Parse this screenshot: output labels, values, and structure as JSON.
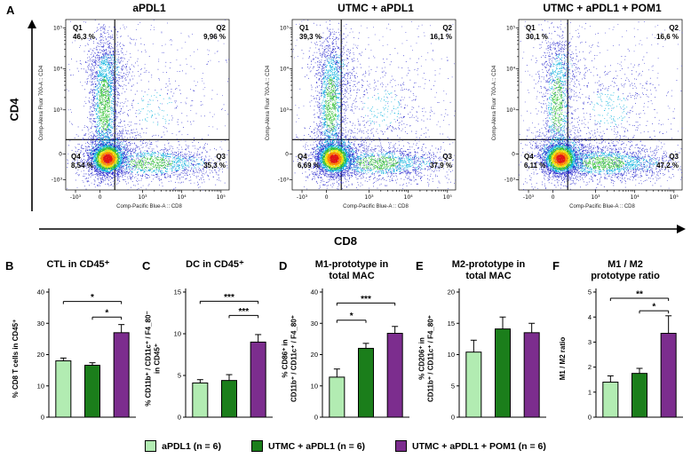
{
  "figure": {
    "panel_a_letter": "A",
    "cd4_big_label": "CD4",
    "cd8_big_label": "CD8"
  },
  "colors": {
    "bars": [
      "#b2ecb2",
      "#1b7e1b",
      "#7c2d8e"
    ],
    "density_scale": [
      "#2424cc",
      "#00b0dc",
      "#2fc12f",
      "#f2e40c",
      "#ff8400",
      "#e31414"
    ]
  },
  "legend": {
    "items": [
      {
        "label": "aPDL1 (n = 6)",
        "color": "#b2ecb2"
      },
      {
        "label": "UTMC + aPDL1 (n = 6)",
        "color": "#1b7e1b"
      },
      {
        "label": "UTMC + aPDL1 + POM1 (n = 6)",
        "color": "#7c2d8e"
      }
    ]
  },
  "chart_data": [
    {
      "type": "scatter",
      "subtype": "flow_cytometry_density",
      "panel": "A",
      "title": "aPDL1",
      "xlabel": "Comp-Pacific Blue-A :: CD8",
      "ylabel": "Comp-Alexa Fluor 700-A :: CD4",
      "xticks": [
        "-10³",
        "0",
        "10³",
        "10⁴",
        "10⁵"
      ],
      "yticks": [
        "-10³",
        "0",
        "10³",
        "10⁴",
        "10⁵"
      ],
      "quadrants": [
        {
          "label": "Q1",
          "pct": "46,3 %"
        },
        {
          "label": "Q2",
          "pct": "9,96 %"
        },
        {
          "label": "Q3",
          "pct": "35,3 %"
        },
        {
          "label": "Q4",
          "pct": "8,54 %"
        }
      ]
    },
    {
      "type": "scatter",
      "subtype": "flow_cytometry_density",
      "panel": "A",
      "title": "UTMC + aPDL1",
      "xlabel": "Comp-Pacific Blue-A :: CD8",
      "ylabel": "Comp-Alexa Fluor 700-A :: CD4",
      "xticks": [
        "-10³",
        "0",
        "10³",
        "10⁴",
        "10⁵"
      ],
      "yticks": [
        "-10³",
        "0",
        "10³",
        "10⁴",
        "10⁵"
      ],
      "quadrants": [
        {
          "label": "Q1",
          "pct": "39,3 %"
        },
        {
          "label": "Q2",
          "pct": "16,1 %"
        },
        {
          "label": "Q3",
          "pct": "37,9 %"
        },
        {
          "label": "Q4",
          "pct": "6,69 %"
        }
      ]
    },
    {
      "type": "scatter",
      "subtype": "flow_cytometry_density",
      "panel": "A",
      "title": "UTMC + aPDL1 + POM1",
      "xlabel": "Comp-Pacific Blue-A :: CD8",
      "ylabel": "Comp-Alexa Fluor 700-A :: CD4",
      "xticks": [
        "-10³",
        "0",
        "10³",
        "10⁴",
        "10⁵"
      ],
      "yticks": [
        "-10³",
        "0",
        "10³",
        "10⁴",
        "10⁵"
      ],
      "quadrants": [
        {
          "label": "Q1",
          "pct": "30,1 %"
        },
        {
          "label": "Q2",
          "pct": "16,6 %"
        },
        {
          "label": "Q3",
          "pct": "47,2 %"
        },
        {
          "label": "Q4",
          "pct": "6,11 %"
        }
      ]
    },
    {
      "type": "bar",
      "panel": "B",
      "title": "CTL in CD45⁺",
      "ylabel": "% CD8 T cells in CD45⁺",
      "categories": [
        "aPDL1 (n = 6)",
        "UTMC + aPDL1 (n = 6)",
        "UTMC + aPDL1 + POM1 (n = 6)"
      ],
      "values": [
        18,
        16.6,
        27
      ],
      "errors": [
        0.9,
        0.8,
        2.6
      ],
      "ylim": [
        0,
        40
      ],
      "yticks": [
        0,
        10,
        20,
        30,
        40
      ],
      "significance": [
        {
          "bars": [
            1,
            3
          ],
          "label": "*",
          "height": 37
        },
        {
          "bars": [
            2,
            3
          ],
          "label": "*",
          "height": 32
        }
      ]
    },
    {
      "type": "bar",
      "panel": "C",
      "title": "DC in CD45⁺",
      "ylabel": "% CD11b⁺ / CD11c⁺ / F4_80⁻\nin CD45⁺",
      "categories": [
        "aPDL1 (n = 6)",
        "UTMC + aPDL1 (n = 6)",
        "UTMC + aPDL1 + POM1 (n = 6)"
      ],
      "values": [
        4.1,
        4.4,
        9.0
      ],
      "errors": [
        0.4,
        0.7,
        0.9
      ],
      "ylim": [
        0,
        15
      ],
      "yticks": [
        0,
        5,
        10,
        15
      ],
      "significance": [
        {
          "bars": [
            1,
            3
          ],
          "label": "***",
          "height": 13.9
        },
        {
          "bars": [
            2,
            3
          ],
          "label": "***",
          "height": 12.2
        }
      ]
    },
    {
      "type": "bar",
      "panel": "D",
      "title": "M1-prototype in\ntotal MAC",
      "ylabel": "% CD86⁺ in\nCD11b⁺ / CD11c⁺ / F4_80⁺",
      "categories": [
        "aPDL1 (n = 6)",
        "UTMC + aPDL1 (n = 6)",
        "UTMC + aPDL1 + POM1 (n = 6)"
      ],
      "values": [
        12.8,
        22,
        26.8
      ],
      "errors": [
        2.6,
        1.6,
        2.2
      ],
      "ylim": [
        0,
        40
      ],
      "yticks": [
        0,
        10,
        20,
        30,
        40
      ],
      "significance": [
        {
          "bars": [
            1,
            2
          ],
          "label": "*",
          "height": 31
        },
        {
          "bars": [
            1,
            3
          ],
          "label": "***",
          "height": 36.5
        }
      ]
    },
    {
      "type": "bar",
      "panel": "E",
      "title": "M2-prototype in\ntotal MAC",
      "ylabel": "% CD206⁺ in\nCD11b⁺ / CD11c⁺ / F4_80⁺",
      "categories": [
        "aPDL1 (n = 6)",
        "UTMC + aPDL1 (n = 6)",
        "UTMC + aPDL1 + POM1 (n = 6)"
      ],
      "values": [
        10.4,
        14.1,
        13.5
      ],
      "errors": [
        1.9,
        1.9,
        1.5
      ],
      "ylim": [
        0,
        20
      ],
      "yticks": [
        0,
        5,
        10,
        15,
        20
      ],
      "significance": []
    },
    {
      "type": "bar",
      "panel": "F",
      "title": "M1 / M2\nprototype ratio",
      "ylabel": "M1 / M2 ratio",
      "categories": [
        "aPDL1 (n = 6)",
        "UTMC + aPDL1 (n = 6)",
        "UTMC + aPDL1 + POM1 (n = 6)"
      ],
      "values": [
        1.4,
        1.75,
        3.35
      ],
      "errors": [
        0.25,
        0.2,
        0.7
      ],
      "ylim": [
        0,
        5
      ],
      "yticks": [
        0,
        1,
        2,
        3,
        4,
        5
      ],
      "significance": [
        {
          "bars": [
            2,
            3
          ],
          "label": "*",
          "height": 4.25
        },
        {
          "bars": [
            1,
            3
          ],
          "label": "**",
          "height": 4.75
        }
      ]
    }
  ]
}
